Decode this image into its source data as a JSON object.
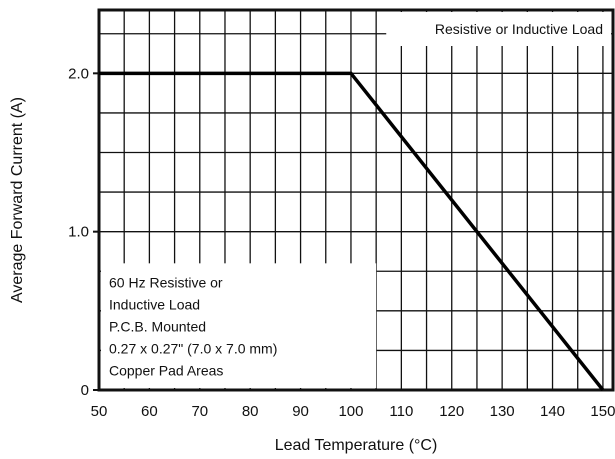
{
  "chart_data": {
    "type": "line",
    "xlabel": "Lead Temperature (°C)",
    "ylabel": "Average Forward Current (A)",
    "xlim": [
      50,
      152
    ],
    "ylim": [
      0,
      2.4
    ],
    "x_ticks": [
      "50",
      "60",
      "70",
      "80",
      "90",
      "100",
      "110",
      "120",
      "130",
      "140",
      "150"
    ],
    "y_ticks": [
      {
        "value": 0,
        "label": "0"
      },
      {
        "value": 1.0,
        "label": "1.0"
      },
      {
        "value": 2.0,
        "label": "2.0"
      }
    ],
    "grid": true,
    "legend": "none",
    "series": [
      {
        "x": [
          50,
          100,
          150
        ],
        "y": [
          2.0,
          2.0,
          0
        ]
      }
    ],
    "annotations": {
      "top_right": "Resistive or Inductive Load",
      "conditions": [
        "60 Hz Resistive or",
        "Inductive Load",
        "P.C.B. Mounted",
        "0.27 x 0.27\" (7.0 x 7.0 mm)",
        "Copper Pad Areas"
      ]
    }
  }
}
